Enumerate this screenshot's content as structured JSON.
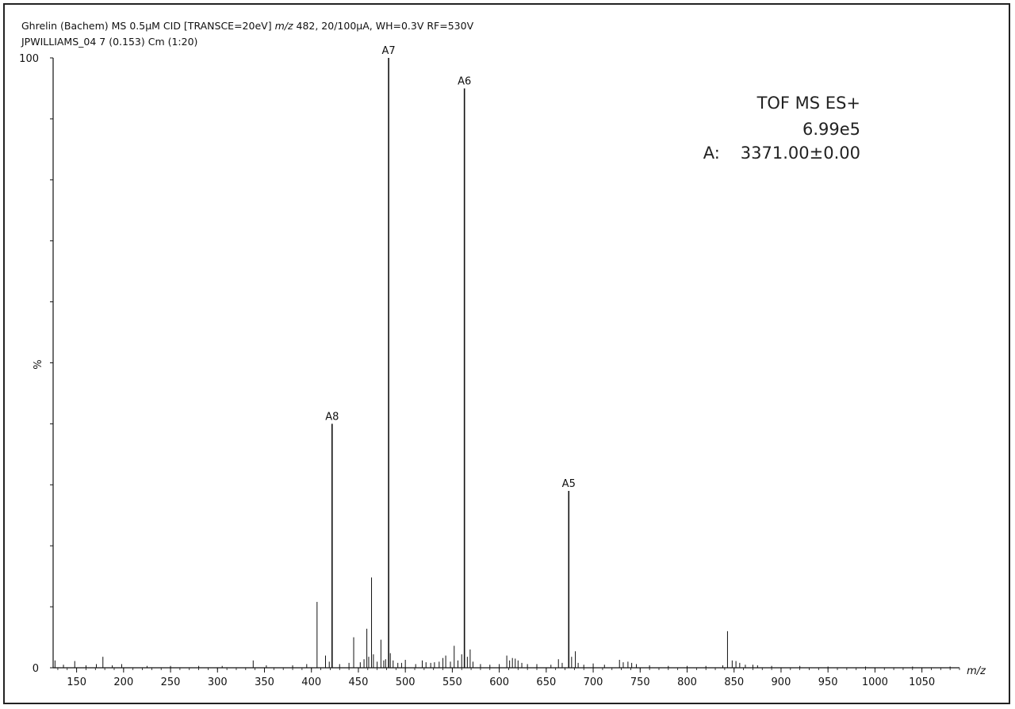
{
  "header": {
    "line1_pre": "Ghrelin (Bachem) MS 0.5µM CID [TRANSCE=20eV] ",
    "line1_italic": "m/z",
    "line1_post": " 482, 20/100µA, WH=0.3V RF=530V",
    "line2": "JPWILLIAMS_04 7 (0.153) Cm (1:20)"
  },
  "info": {
    "mode": "TOF MS ES+",
    "intensity": "6.99e5",
    "mass_label": "A:",
    "mass_value": "3371.00±0.00"
  },
  "chart_data": {
    "type": "bar",
    "xlabel": "m/z",
    "ylabel": "%",
    "xlim": [
      125,
      1090
    ],
    "ylim": [
      0,
      100
    ],
    "xticks": [
      150,
      200,
      250,
      300,
      350,
      400,
      450,
      500,
      550,
      600,
      650,
      700,
      750,
      800,
      850,
      900,
      950,
      1000,
      1050
    ],
    "yticks_labeled": [
      0,
      100
    ],
    "y_axis_mid_label": "%",
    "peaks": [
      {
        "x": 482.2,
        "y": 100,
        "label": "A7"
      },
      {
        "x": 562.9,
        "y": 95,
        "label": "A6"
      },
      {
        "x": 422.0,
        "y": 40,
        "label": "A8"
      },
      {
        "x": 674.0,
        "y": 29,
        "label": "A5"
      }
    ],
    "minor_peaks": [
      [
        127,
        1.2
      ],
      [
        136,
        0.5
      ],
      [
        148,
        1.1
      ],
      [
        160,
        0.4
      ],
      [
        171,
        0.6
      ],
      [
        178,
        1.8
      ],
      [
        188,
        0.4
      ],
      [
        198,
        0.6
      ],
      [
        225,
        0.3
      ],
      [
        250,
        0.3
      ],
      [
        280,
        0.3
      ],
      [
        305,
        0.3
      ],
      [
        338,
        1.2
      ],
      [
        352,
        0.4
      ],
      [
        380,
        0.4
      ],
      [
        395,
        0.6
      ],
      [
        406,
        10.8
      ],
      [
        415,
        2.0
      ],
      [
        419,
        1.0
      ],
      [
        430,
        0.6
      ],
      [
        440,
        0.8
      ],
      [
        445,
        5.0
      ],
      [
        452,
        0.9
      ],
      [
        456,
        1.4
      ],
      [
        459,
        6.4
      ],
      [
        461,
        1.8
      ],
      [
        464,
        14.8
      ],
      [
        466,
        2.2
      ],
      [
        470,
        1.0
      ],
      [
        474,
        4.6
      ],
      [
        477,
        1.2
      ],
      [
        479,
        1.4
      ],
      [
        484,
        2.4
      ],
      [
        487,
        1.2
      ],
      [
        492,
        0.8
      ],
      [
        496,
        0.8
      ],
      [
        500,
        1.3
      ],
      [
        511,
        0.6
      ],
      [
        518,
        1.2
      ],
      [
        522,
        0.9
      ],
      [
        527,
        0.8
      ],
      [
        531,
        0.9
      ],
      [
        536,
        1.0
      ],
      [
        540,
        1.6
      ],
      [
        543,
        2.0
      ],
      [
        548,
        1.0
      ],
      [
        552,
        3.6
      ],
      [
        556,
        1.2
      ],
      [
        560,
        2.2
      ],
      [
        566,
        1.8
      ],
      [
        569,
        3.0
      ],
      [
        572,
        1.0
      ],
      [
        580,
        0.6
      ],
      [
        590,
        0.5
      ],
      [
        600,
        0.6
      ],
      [
        608,
        2.0
      ],
      [
        611,
        1.2
      ],
      [
        614,
        1.6
      ],
      [
        617,
        1.5
      ],
      [
        620,
        1.2
      ],
      [
        624,
        0.8
      ],
      [
        630,
        0.6
      ],
      [
        640,
        0.6
      ],
      [
        655,
        0.5
      ],
      [
        663,
        1.4
      ],
      [
        667,
        0.8
      ],
      [
        677,
        1.8
      ],
      [
        681,
        2.7
      ],
      [
        684,
        0.8
      ],
      [
        690,
        0.5
      ],
      [
        700,
        0.7
      ],
      [
        712,
        0.5
      ],
      [
        728,
        1.3
      ],
      [
        732,
        0.9
      ],
      [
        737,
        1.0
      ],
      [
        741,
        0.8
      ],
      [
        746,
        0.6
      ],
      [
        760,
        0.4
      ],
      [
        780,
        0.3
      ],
      [
        800,
        0.3
      ],
      [
        820,
        0.3
      ],
      [
        838,
        0.4
      ],
      [
        843,
        6.0
      ],
      [
        848,
        1.2
      ],
      [
        852,
        1.1
      ],
      [
        856,
        0.8
      ],
      [
        862,
        0.5
      ],
      [
        870,
        0.5
      ],
      [
        875,
        0.4
      ],
      [
        890,
        0.3
      ],
      [
        920,
        0.3
      ],
      [
        950,
        0.2
      ],
      [
        990,
        0.2
      ],
      [
        1040,
        0.2
      ],
      [
        1080,
        0.2
      ]
    ]
  }
}
